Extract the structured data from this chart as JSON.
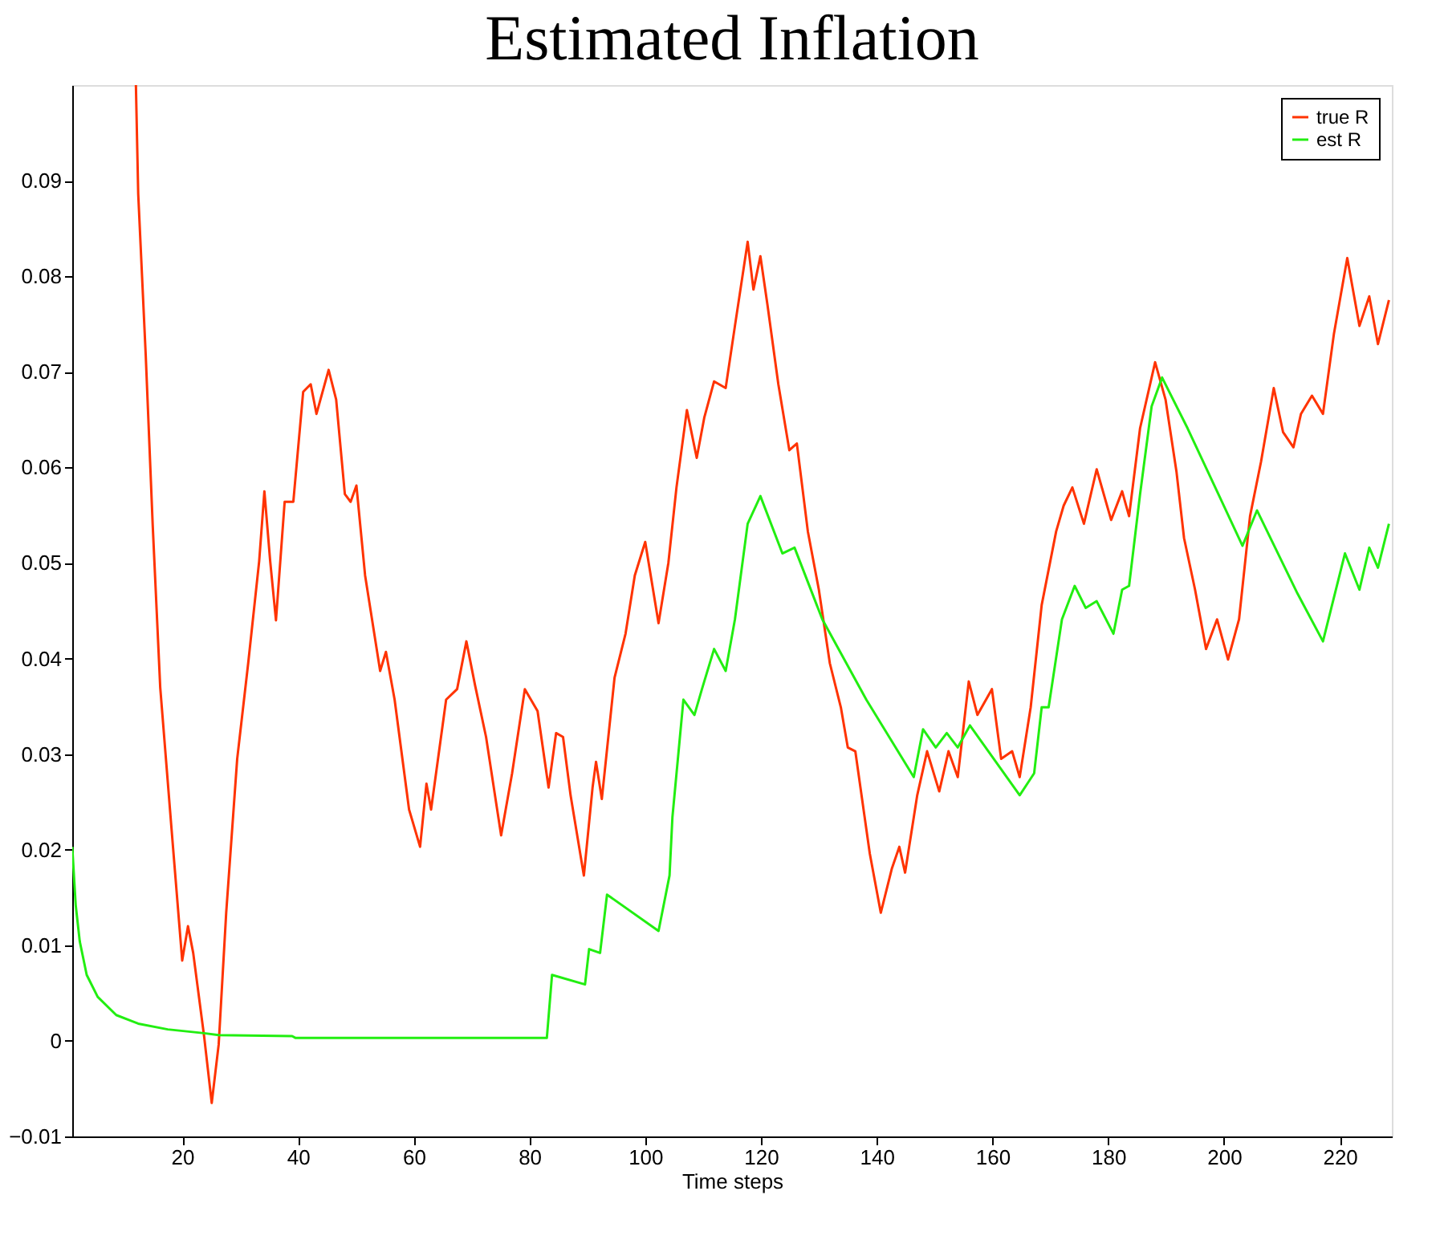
{
  "chart_data": {
    "type": "line",
    "title": "Estimated Inflation",
    "xlabel": "Time steps",
    "xlim": [
      1,
      229
    ],
    "xticks": [
      20,
      40,
      60,
      80,
      100,
      120,
      140,
      160,
      180,
      200,
      220
    ],
    "ylim": [
      -0.01,
      0.1
    ],
    "yticks": [
      -0.01,
      0,
      0.01,
      0.02,
      0.03,
      0.04,
      0.05,
      0.06,
      0.07,
      0.08,
      0.09
    ],
    "grid": false,
    "legend": "top right",
    "marker": "none",
    "line_style": "solid",
    "series": [
      {
        "name": "true R",
        "color": "#ff3300",
        "x": [
          12,
          12.4,
          13.7,
          14.9,
          16.2,
          18.1,
          20,
          21,
          21.9,
          23.8,
          25.1,
          26.3,
          27.6,
          29.5,
          31.4,
          33.3,
          34.2,
          35.2,
          36.2,
          37.7,
          39.2,
          40.9,
          42.2,
          43.2,
          45.3,
          46.6,
          48.1,
          49.1,
          50.1,
          51.6,
          54.2,
          55.2,
          56.7,
          59.2,
          61.1,
          62.2,
          63,
          65.6,
          67.5,
          69.1,
          70.6,
          72.5,
          75.1,
          77,
          79.2,
          81.4,
          83.3,
          84.6,
          85.8,
          87.1,
          89.4,
          90.9,
          91.5,
          92.5,
          94.7,
          96.6,
          98.2,
          100,
          102.3,
          104,
          105.4,
          107.2,
          108.9,
          110.2,
          111.9,
          113.9,
          115.5,
          117.7,
          118.7,
          119.9,
          121.1,
          123,
          124.9,
          126.2,
          128.1,
          130,
          131.9,
          133.8,
          135,
          136.3,
          138.8,
          140.7,
          142.6,
          143.9,
          144.9,
          147,
          148.7,
          150.8,
          152.4,
          154,
          155.9,
          157.4,
          159.9,
          161.5,
          163.4,
          164.7,
          166.6,
          168.5,
          171,
          172.3,
          173.8,
          175.8,
          178,
          180.5,
          182.4,
          183.6,
          185.5,
          188.1,
          189.9,
          191.8,
          193.1,
          195,
          196.9,
          198.8,
          200.7,
          202.6,
          204.5,
          206.4,
          208.6,
          210.2,
          212,
          213.3,
          215.2,
          217.1,
          219,
          221.3,
          223.4,
          225.1,
          226.6,
          228.5
        ],
        "values": [
          0.1,
          0.0886,
          0.0717,
          0.054,
          0.037,
          0.0226,
          0.0084,
          0.012,
          0.0092,
          0.0004,
          -0.0065,
          -0.0004,
          0.0134,
          0.0295,
          0.0395,
          0.0502,
          0.0575,
          0.0502,
          0.044,
          0.0564,
          0.0564,
          0.0679,
          0.0687,
          0.0656,
          0.0702,
          0.0671,
          0.0572,
          0.0564,
          0.0581,
          0.0487,
          0.0387,
          0.0407,
          0.0357,
          0.0242,
          0.0203,
          0.0269,
          0.0242,
          0.0357,
          0.0368,
          0.0418,
          0.0372,
          0.0318,
          0.0215,
          0.028,
          0.0368,
          0.0345,
          0.0265,
          0.0322,
          0.0318,
          0.0257,
          0.0173,
          0.0265,
          0.0292,
          0.0253,
          0.038,
          0.0426,
          0.0487,
          0.0522,
          0.0437,
          0.05,
          0.0579,
          0.066,
          0.061,
          0.0652,
          0.069,
          0.0683,
          0.0748,
          0.0836,
          0.0786,
          0.0821,
          0.0771,
          0.0687,
          0.0618,
          0.0625,
          0.0533,
          0.0472,
          0.0395,
          0.0349,
          0.0307,
          0.0303,
          0.0196,
          0.0134,
          0.018,
          0.0203,
          0.0176,
          0.0257,
          0.0303,
          0.0261,
          0.0303,
          0.0276,
          0.0376,
          0.0341,
          0.0368,
          0.0295,
          0.0303,
          0.0276,
          0.0349,
          0.0456,
          0.0533,
          0.056,
          0.0579,
          0.0541,
          0.0598,
          0.0545,
          0.0575,
          0.0549,
          0.0641,
          0.071,
          0.0671,
          0.0595,
          0.0526,
          0.0472,
          0.041,
          0.0441,
          0.0399,
          0.0441,
          0.0549,
          0.0606,
          0.0683,
          0.0637,
          0.0621,
          0.0656,
          0.0675,
          0.0656,
          0.074,
          0.0819,
          0.0748,
          0.0779,
          0.0729,
          0.0775
        ]
      },
      {
        "name": "est R",
        "color": "#22ee11",
        "x": [
          1,
          1.6,
          2.3,
          3.5,
          5.4,
          8.6,
          12.4,
          17.5,
          23.8,
          26.3,
          39,
          39.6,
          83,
          83.9,
          89.6,
          90.3,
          92.2,
          93.4,
          102.3,
          104.2,
          104.7,
          106.6,
          108.5,
          109.8,
          111.9,
          113.9,
          115.5,
          117.7,
          119.9,
          123.7,
          125.8,
          130.6,
          138.2,
          146.4,
          148,
          150.2,
          152.1,
          154,
          156.1,
          164.7,
          167.2,
          168.5,
          169.7,
          172,
          174.2,
          176.1,
          178,
          180.9,
          182.4,
          183.6,
          185.5,
          187.5,
          189.3,
          193.7,
          198.8,
          203.2,
          205.7,
          212.7,
          217.1,
          220.9,
          223.4,
          225.1,
          226.6,
          228.5
        ],
        "values": [
          0.0203,
          0.0142,
          0.0104,
          0.0069,
          0.0046,
          0.0027,
          0.0018,
          0.0012,
          0.0008,
          0.0006,
          0.0005,
          0.0003,
          0.0003,
          0.0069,
          0.0059,
          0.0096,
          0.0092,
          0.0153,
          0.0115,
          0.0173,
          0.0234,
          0.0357,
          0.0341,
          0.0368,
          0.041,
          0.0387,
          0.0441,
          0.0541,
          0.057,
          0.051,
          0.0516,
          0.0441,
          0.0357,
          0.0276,
          0.0326,
          0.0307,
          0.0322,
          0.0307,
          0.033,
          0.0257,
          0.028,
          0.0349,
          0.0349,
          0.0441,
          0.0476,
          0.0453,
          0.046,
          0.0426,
          0.0472,
          0.0476,
          0.0572,
          0.0664,
          0.0694,
          0.0641,
          0.0575,
          0.0518,
          0.0555,
          0.0468,
          0.0418,
          0.051,
          0.0472,
          0.0516,
          0.0495,
          0.0541
        ]
      }
    ]
  }
}
